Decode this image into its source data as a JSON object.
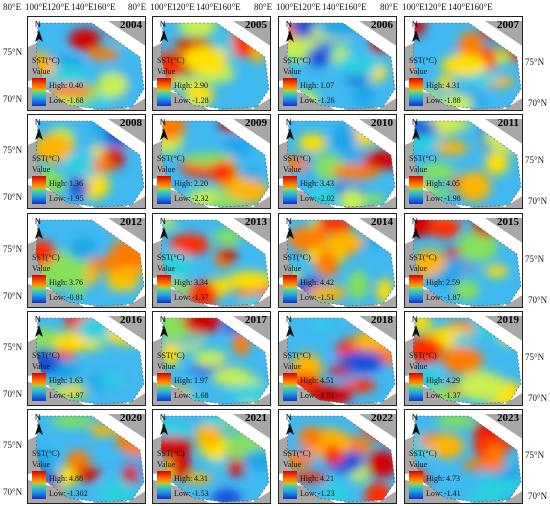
{
  "top_axis": [
    "80°E",
    "100°E",
    "120°E",
    "140°E",
    "160°E"
  ],
  "left_axis": [
    "75°N",
    "70°N"
  ],
  "right_axis": [
    "75°N",
    "70°N"
  ],
  "legend": {
    "title": "SST(°C)",
    "value_label": "Value",
    "high_prefix": "High:",
    "low_prefix": "Low:"
  },
  "north_label": "N",
  "panels": [
    {
      "year": "2004",
      "high": "0.40",
      "low": "-1.68"
    },
    {
      "year": "2005",
      "high": "2.90",
      "low": "-1.28"
    },
    {
      "year": "2006",
      "high": "1.07",
      "low": "-1.26"
    },
    {
      "year": "2007",
      "high": "4.31",
      "low": "-1.88"
    },
    {
      "year": "2008",
      "high": "1.36",
      "low": "-1.95"
    },
    {
      "year": "2009",
      "high": "2.20",
      "low": "-2.32"
    },
    {
      "year": "2010",
      "high": "3.43",
      "low": "-2.02"
    },
    {
      "year": "2011",
      "high": "4.05",
      "low": "-1.98"
    },
    {
      "year": "2012",
      "high": "3.76",
      "low": "-0.81"
    },
    {
      "year": "2013",
      "high": "3.34",
      "low": "-1.37"
    },
    {
      "year": "2014",
      "high": "4.42",
      "low": "-1.51"
    },
    {
      "year": "2015",
      "high": "2.59",
      "low": "-1.87"
    },
    {
      "year": "2016",
      "high": "1.63",
      "low": "-1.97"
    },
    {
      "year": "2017",
      "high": "1.97",
      "low": "-1.68"
    },
    {
      "year": "2018",
      "high": "4.51",
      "low": "-1.51"
    },
    {
      "year": "2019",
      "high": "4.29",
      "low": "-1.37"
    },
    {
      "year": "2020",
      "high": "4.88",
      "low": "-1.302"
    },
    {
      "year": "2021",
      "high": "4.31",
      "low": "-1.53"
    },
    {
      "year": "2022",
      "high": "4.21",
      "low": "-1.23"
    },
    {
      "year": "2023",
      "high": "4.73",
      "low": "-1.41"
    }
  ]
}
